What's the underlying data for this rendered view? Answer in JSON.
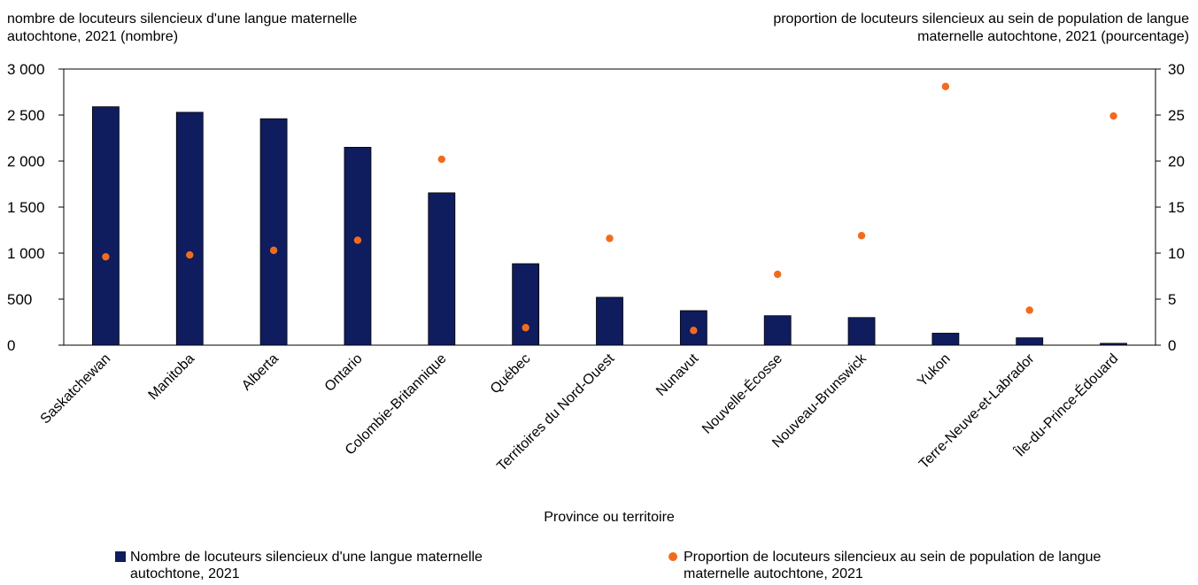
{
  "chart_data": {
    "type": "bar",
    "categories": [
      "Saskatchewan",
      "Manitoba",
      "Alberta",
      "Ontario",
      "Colombie-Britannique",
      "Québec",
      "Territoires du Nord-Ouest",
      "Nunavut",
      "Nouvelle-Écosse",
      "Nouveau-Brunswick",
      "Yukon",
      "Terre-Neuve-et-Labrador",
      "Île-du-Prince-Édouard"
    ],
    "series": [
      {
        "name": "Nombre de locuteurs silencieux d'une langue maternelle autochtone, 2021",
        "axis": "left",
        "mark": "bar",
        "color": "#0f1c5e",
        "values": [
          2590,
          2530,
          2460,
          2150,
          1655,
          885,
          520,
          375,
          320,
          300,
          130,
          80,
          20
        ]
      },
      {
        "name": "Proportion de locuteurs silencieux au sein de population de langue maternelle autochtone, 2021",
        "axis": "right",
        "mark": "dot",
        "color": "#f26b1d",
        "values": [
          9.6,
          9.8,
          10.3,
          11.4,
          20.2,
          1.9,
          11.6,
          1.6,
          7.7,
          11.9,
          28.1,
          3.8,
          24.9
        ]
      }
    ],
    "y_left": {
      "label": "nombre de locuteurs silencieux d'une langue maternelle autochtone, 2021 (nombre)",
      "ylim": [
        0,
        3000
      ],
      "ticks": [
        0,
        500,
        1000,
        1500,
        2000,
        2500,
        3000
      ],
      "tick_labels": [
        "0",
        "500",
        "1 000",
        "1 500",
        "2 000",
        "2 500",
        "3 000"
      ]
    },
    "y_right": {
      "label": "proportion de locuteurs silencieux au sein de population de langue maternelle autochtone, 2021 (pourcentage)",
      "ylim": [
        0,
        30
      ],
      "ticks": [
        0,
        5,
        10,
        15,
        20,
        25,
        30
      ],
      "tick_labels": [
        "0",
        "5",
        "10",
        "15",
        "20",
        "25",
        "30"
      ]
    },
    "xlabel": "Province ou territoire",
    "grid": false,
    "legend_position": "bottom"
  },
  "labels": {
    "left_axis_title": "nombre de locuteurs silencieux d'une langue maternelle autochtone, 2021 (nombre)",
    "right_axis_title": "proportion de locuteurs silencieux au sein de population de langue maternelle autochtone, 2021 (pourcentage)",
    "x_axis_title": "Province ou territoire",
    "legend_bars": "Nombre de locuteurs silencieux d'une langue maternelle autochtone, 2021",
    "legend_dots": "Proportion de locuteurs silencieux au sein de population de langue maternelle autochtone, 2021"
  }
}
